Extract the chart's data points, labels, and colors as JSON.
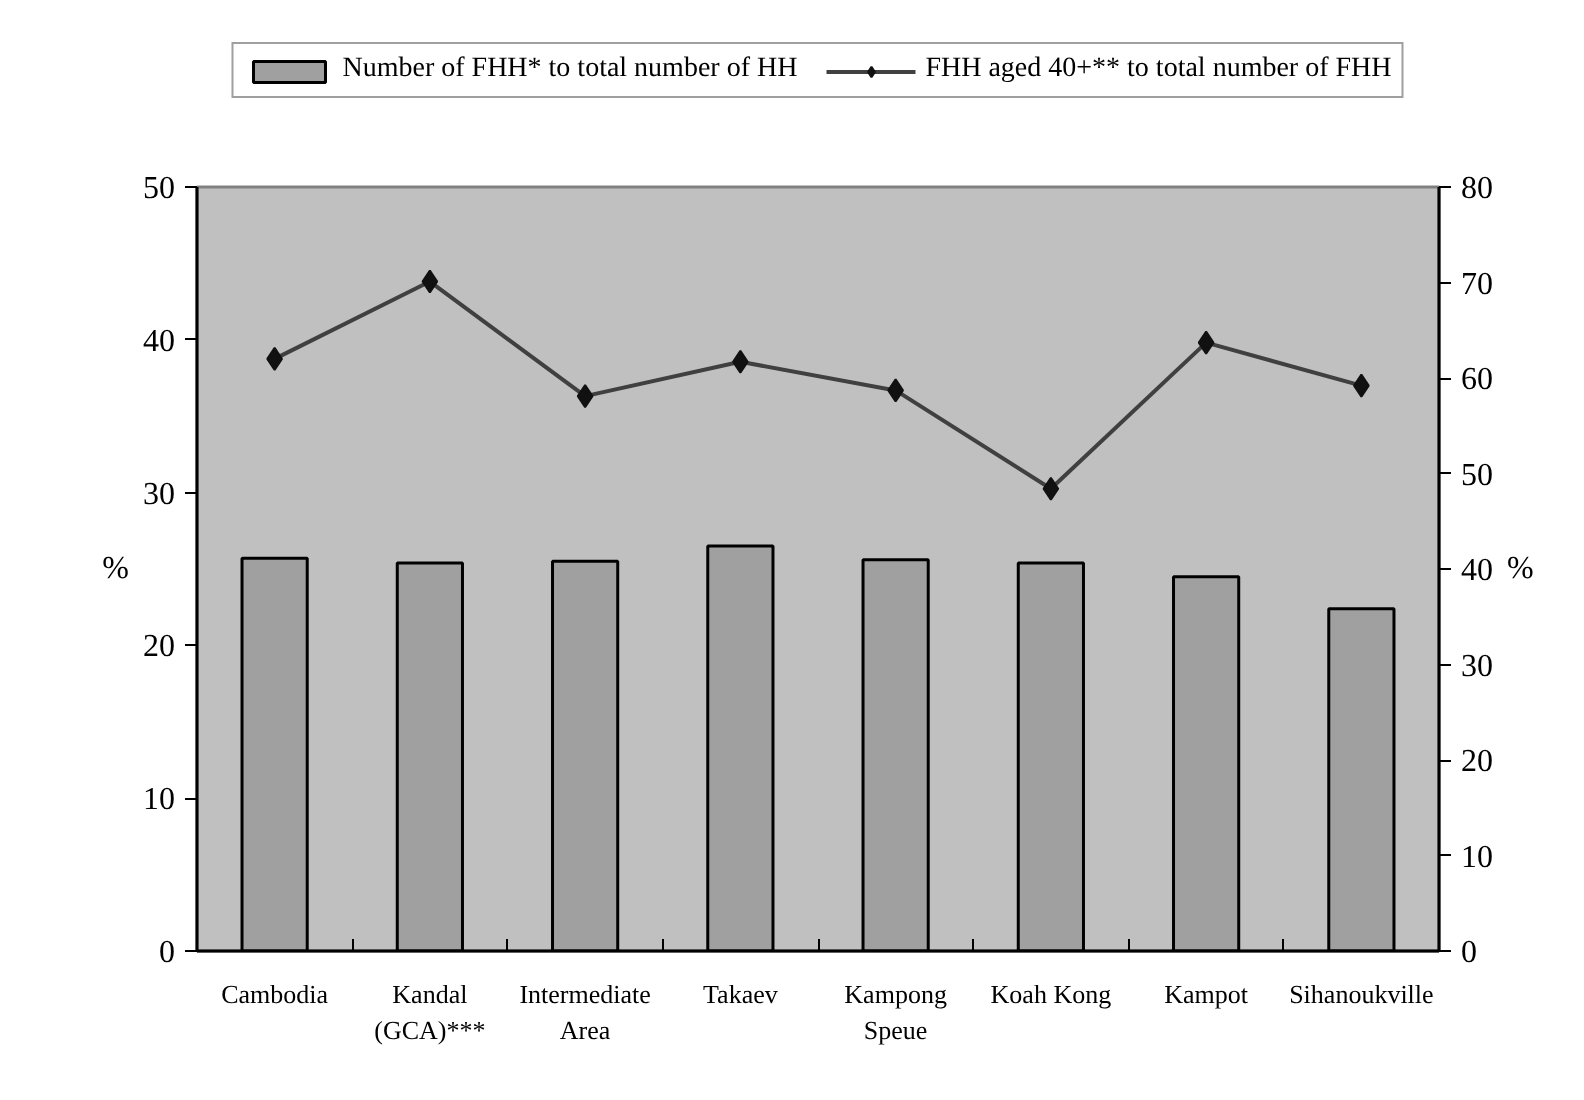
{
  "chart_data": {
    "type": "bar",
    "categories": [
      "Cambodia",
      "Kandal (GCA)***",
      "Intermediate Area",
      "Takaev",
      "Kampong Speue",
      "Koah Kong",
      "Kampot",
      "Sihanoukville"
    ],
    "series": [
      {
        "name": "Number of FHH* to total number of HH",
        "color": "#a0a0a0",
        "values": [
          25.7,
          25.4,
          25.5,
          26.5,
          25.6,
          25.4,
          24.5,
          22.4
        ]
      },
      {
        "name": "FHH aged 40+** to total number of FHH",
        "type": "line",
        "axis": "y2",
        "color": "#404040",
        "values": [
          62.0,
          70.1,
          58.1,
          61.7,
          58.7,
          48.4,
          63.7,
          59.2
        ]
      }
    ],
    "ylabel": "%",
    "y2label": "%",
    "ylim": [
      0,
      50
    ],
    "yticks": [
      0,
      10,
      20,
      30,
      40,
      50
    ],
    "y2lim": [
      0,
      80
    ],
    "y2ticks": [
      0,
      10,
      20,
      30,
      40,
      50,
      60,
      70,
      80
    ],
    "legend": "top",
    "grid": false,
    "marker": "diamond",
    "line_style": "solid"
  }
}
